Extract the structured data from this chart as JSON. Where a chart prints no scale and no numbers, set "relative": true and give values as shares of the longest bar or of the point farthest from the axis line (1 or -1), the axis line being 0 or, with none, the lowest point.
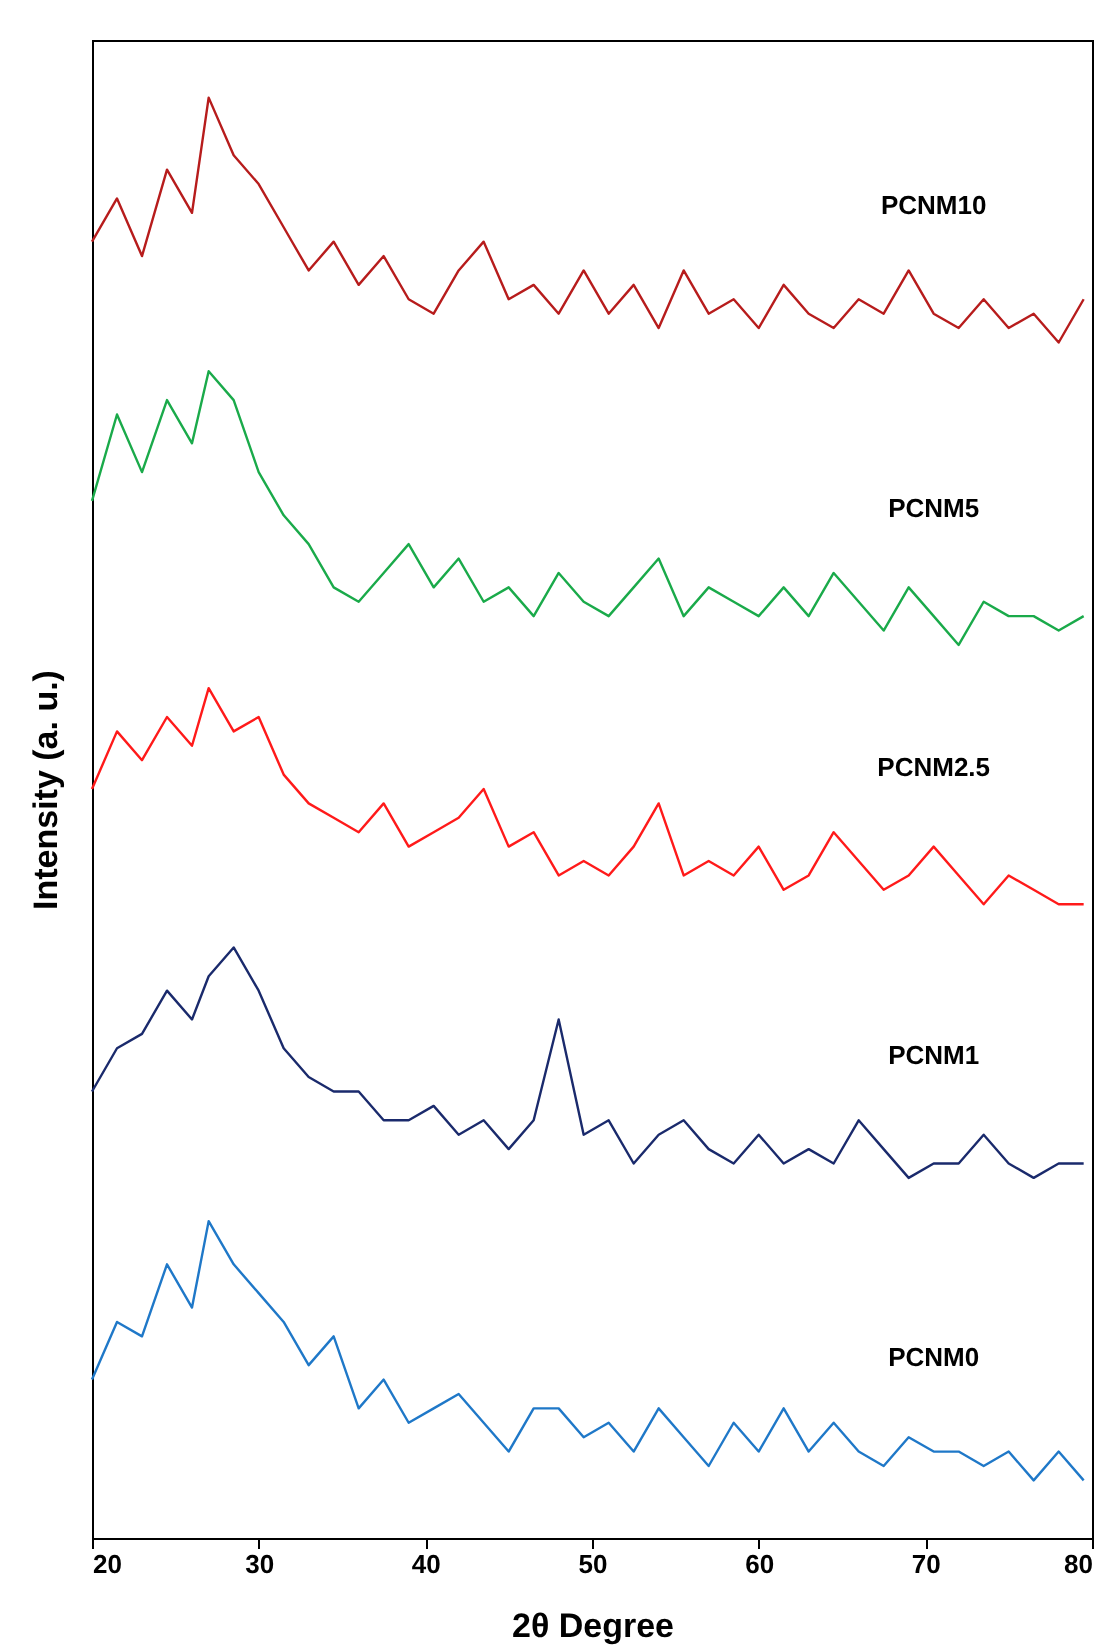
{
  "chart_data": {
    "type": "line",
    "xlabel": "2θ Degree",
    "ylabel": "Intensity (a. u.)",
    "relative": true,
    "xlim": [
      20,
      80
    ],
    "xticks": [
      20,
      30,
      40,
      50,
      60,
      70,
      80
    ],
    "legend": false,
    "line_style": "solid",
    "marker": "none",
    "x": [
      20,
      21.5,
      23,
      24.5,
      26,
      27,
      28.5,
      30,
      31.5,
      33,
      34.5,
      36,
      37.5,
      39,
      40.5,
      42,
      43.5,
      45,
      46.5,
      48,
      49.5,
      51,
      52.5,
      54,
      55.5,
      57,
      58.5,
      60,
      61.5,
      63,
      64.5,
      66,
      67.5,
      69,
      70.5,
      72,
      73.5,
      75,
      76.5,
      78,
      79.5
    ],
    "series": [
      {
        "name": "PCNM10",
        "color": "#b71c1c",
        "values": [
          0.9,
          0.93,
          0.89,
          0.95,
          0.92,
          1.0,
          0.96,
          0.94,
          0.91,
          0.88,
          0.9,
          0.87,
          0.89,
          0.86,
          0.85,
          0.88,
          0.9,
          0.86,
          0.87,
          0.85,
          0.88,
          0.85,
          0.87,
          0.84,
          0.88,
          0.85,
          0.86,
          0.84,
          0.87,
          0.85,
          0.84,
          0.86,
          0.85,
          0.88,
          0.85,
          0.84,
          0.86,
          0.84,
          0.85,
          0.83,
          0.86
        ]
      },
      {
        "name": "PCNM5",
        "color": "#1aaa4a",
        "values": [
          0.72,
          0.78,
          0.74,
          0.79,
          0.76,
          0.81,
          0.79,
          0.74,
          0.71,
          0.69,
          0.66,
          0.65,
          0.67,
          0.69,
          0.66,
          0.68,
          0.65,
          0.66,
          0.64,
          0.67,
          0.65,
          0.64,
          0.66,
          0.68,
          0.64,
          0.66,
          0.65,
          0.64,
          0.66,
          0.64,
          0.67,
          0.65,
          0.63,
          0.66,
          0.64,
          0.62,
          0.65,
          0.64,
          0.64,
          0.63,
          0.64
        ]
      },
      {
        "name": "PCNM2.5",
        "color": "#ff1a1a",
        "values": [
          0.52,
          0.56,
          0.54,
          0.57,
          0.55,
          0.59,
          0.56,
          0.57,
          0.53,
          0.51,
          0.5,
          0.49,
          0.51,
          0.48,
          0.49,
          0.5,
          0.52,
          0.48,
          0.49,
          0.46,
          0.47,
          0.46,
          0.48,
          0.51,
          0.46,
          0.47,
          0.46,
          0.48,
          0.45,
          0.46,
          0.49,
          0.47,
          0.45,
          0.46,
          0.48,
          0.46,
          0.44,
          0.46,
          0.45,
          0.44,
          0.44
        ]
      },
      {
        "name": "PCNM1",
        "color": "#1a2a6c",
        "values": [
          0.31,
          0.34,
          0.35,
          0.38,
          0.36,
          0.39,
          0.41,
          0.38,
          0.34,
          0.32,
          0.31,
          0.31,
          0.29,
          0.29,
          0.3,
          0.28,
          0.29,
          0.27,
          0.29,
          0.36,
          0.28,
          0.29,
          0.26,
          0.28,
          0.29,
          0.27,
          0.26,
          0.28,
          0.26,
          0.27,
          0.26,
          0.29,
          0.27,
          0.25,
          0.26,
          0.26,
          0.28,
          0.26,
          0.25,
          0.26,
          0.26
        ]
      },
      {
        "name": "PCNM0",
        "color": "#1f78c8",
        "values": [
          0.11,
          0.15,
          0.14,
          0.19,
          0.16,
          0.22,
          0.19,
          0.17,
          0.15,
          0.12,
          0.14,
          0.09,
          0.11,
          0.08,
          0.09,
          0.1,
          0.08,
          0.06,
          0.09,
          0.09,
          0.07,
          0.08,
          0.06,
          0.09,
          0.07,
          0.05,
          0.08,
          0.06,
          0.09,
          0.06,
          0.08,
          0.06,
          0.05,
          0.07,
          0.06,
          0.06,
          0.05,
          0.06,
          0.04,
          0.06,
          0.04
        ]
      }
    ]
  }
}
